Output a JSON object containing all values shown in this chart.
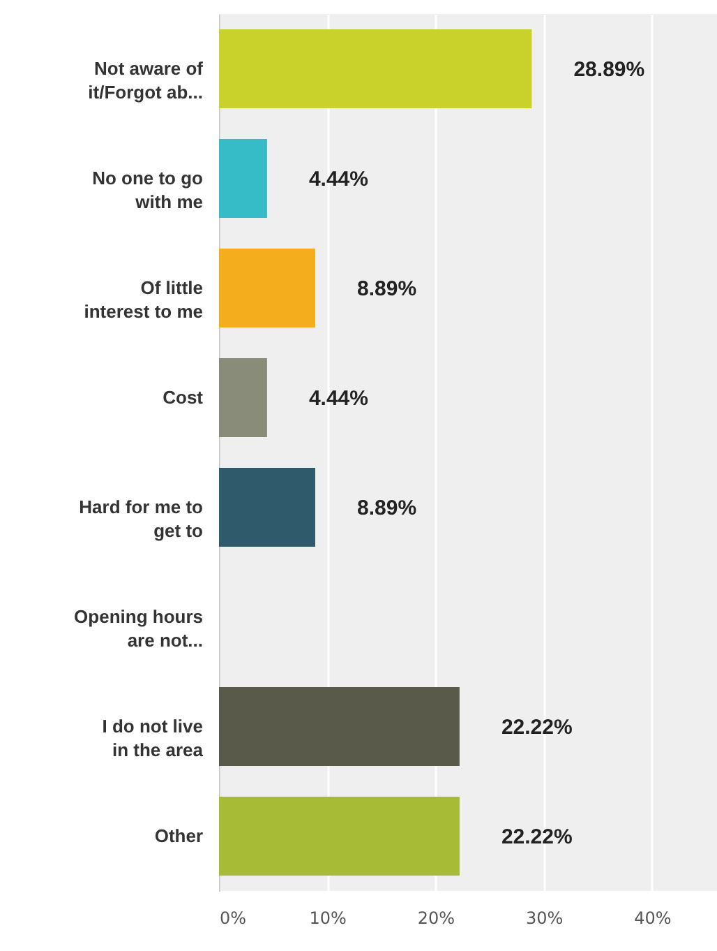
{
  "chart_data": {
    "type": "bar",
    "orientation": "horizontal",
    "categories": [
      "Not aware of it/Forgot ab...",
      "No one to go with me",
      "Of little interest to me",
      "Cost",
      "Hard for me to get to",
      "Opening hours are not...",
      "I do not live in the area",
      "Other"
    ],
    "values": [
      28.89,
      4.44,
      8.89,
      4.44,
      8.89,
      0,
      22.22,
      22.22
    ],
    "value_labels": [
      "28.89%",
      "4.44%",
      "8.89%",
      "4.44%",
      "8.89%",
      null,
      "22.22%",
      "22.22%"
    ],
    "colors": [
      "#c9d22b",
      "#36bcc6",
      "#f4ae1d",
      "#8a8c7a",
      "#2f5a6b",
      "#999999",
      "#5a5a4a",
      "#a7bb36"
    ],
    "xlim": [
      0,
      46
    ],
    "xticks": [
      {
        "value": 0,
        "label": "0%"
      },
      {
        "value": 10,
        "label": "10%"
      },
      {
        "value": 20,
        "label": "20%"
      },
      {
        "value": 30,
        "label": "30%"
      },
      {
        "value": 40,
        "label": "40%"
      }
    ],
    "grid": "x"
  }
}
